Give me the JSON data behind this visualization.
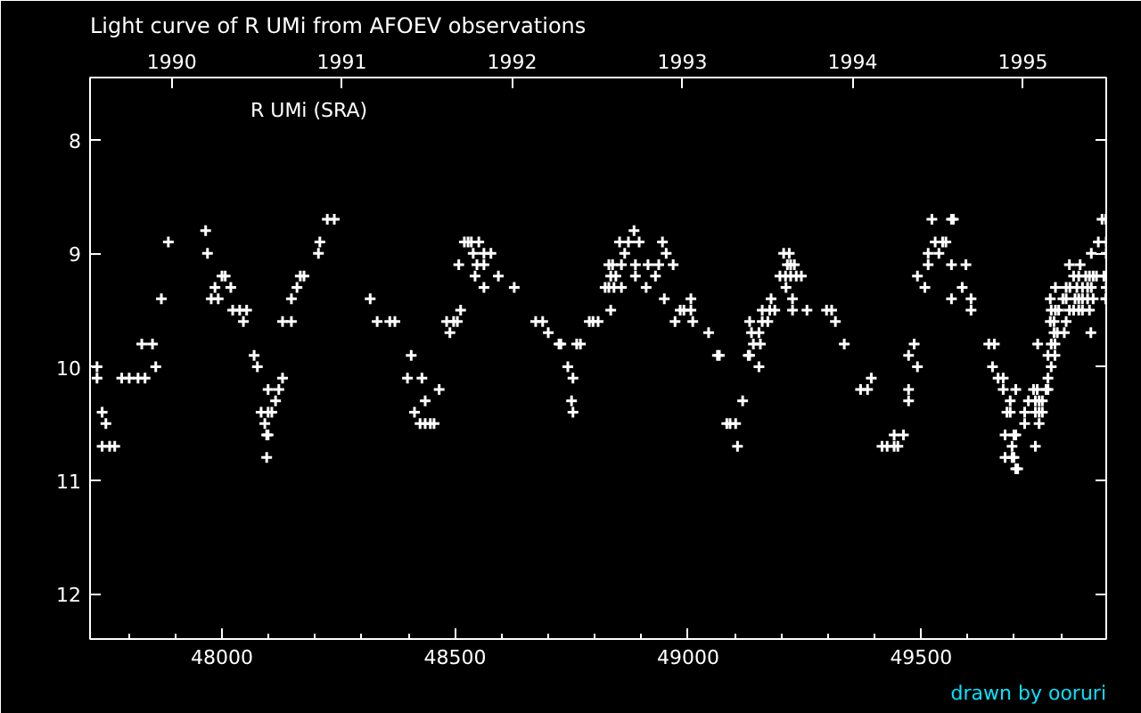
{
  "chart_data": {
    "type": "scatter",
    "title": "Light curve of R UMi from AFOEV observations",
    "annotations": [
      "R UMi (SRA)",
      "drawn by ooruri"
    ],
    "marker": "cross",
    "grid": false,
    "color": "#ffffff",
    "xlim": [
      47717,
      49897
    ],
    "ylim": [
      12.4,
      7.45
    ],
    "xticks": [
      {
        "value": 47800,
        "label": null
      },
      {
        "value": 47900,
        "label": null
      },
      48000,
      {
        "value": 48100,
        "label": null
      },
      {
        "value": 48200,
        "label": null
      },
      {
        "value": 48300,
        "label": null
      },
      {
        "value": 48400,
        "label": null
      },
      48500,
      {
        "value": 48600,
        "label": null
      },
      {
        "value": 48700,
        "label": null
      },
      {
        "value": 48800,
        "label": null
      },
      {
        "value": 48900,
        "label": null
      },
      49000,
      {
        "value": 49100,
        "label": null
      },
      {
        "value": 49200,
        "label": null
      },
      {
        "value": 49300,
        "label": null
      },
      {
        "value": 49400,
        "label": null
      },
      49500,
      {
        "value": 49600,
        "label": null
      },
      {
        "value": 49700,
        "label": null
      },
      {
        "value": 49800,
        "label": null
      }
    ],
    "yticks": [
      8,
      9,
      10,
      11,
      12
    ],
    "x2lim": [
      1989.52,
      1995.49
    ],
    "x2ticks": [
      1990,
      1991,
      1992,
      1993,
      1994,
      1995
    ],
    "x": [
      47732,
      47732,
      47743,
      47751,
      47743,
      47759,
      47770,
      47785,
      47801,
      47820,
      47835,
      47828,
      47851,
      47858,
      47870,
      47885,
      47965,
      47969,
      48000,
      48007,
      47985,
      48019,
      47977,
      47992,
      48023,
      48038,
      48053,
      48046,
      48069,
      48076,
      48130,
      48099,
      48122,
      48115,
      48084,
      48099,
      48107,
      48092,
      48096,
      48099,
      48096,
      48130,
      48149,
      48149,
      48161,
      48168,
      48176,
      48207,
      48210,
      48226,
      48241,
      48318,
      48333,
      48360,
      48371,
      48406,
      48398,
      48429,
      48436,
      48413,
      48425,
      48436,
      48447,
      48455,
      48466,
      48512,
      48482,
      48497,
      48505,
      48489,
      48508,
      48520,
      48528,
      48535,
      48551,
      48539,
      48562,
      48577,
      48547,
      48562,
      48543,
      48593,
      48562,
      48627,
      48673,
      48688,
      48700,
      48723,
      48727,
      48761,
      48769,
      48742,
      48753,
      48750,
      48753,
      48788,
      48796,
      48807,
      48834,
      48822,
      48830,
      48841,
      48857,
      48834,
      48845,
      48887,
      48930,
      48830,
      48838,
      48857,
      48887,
      48914,
      48937,
      48968,
      48864,
      48953,
      48853,
      48872,
      48895,
      48945,
      48884,
      48910,
      48949,
      49006,
      48983,
      48991,
      49006,
      48972,
      49010,
      49044,
      49063,
      49067,
      49106,
      49117,
      49083,
      49090,
      49102,
      49129,
      49132,
      49152,
      49140,
      49155,
      49136,
      49152,
      49132,
      49159,
      49171,
      49159,
      49175,
      49186,
      49178,
      49224,
      49224,
      49255,
      49210,
      49197,
      49209,
      49220,
      49232,
      49243,
      49213,
      49220,
      49228,
      49205,
      49217,
      49297,
      49308,
      49316,
      49335,
      49393,
      49370,
      49385,
      49416,
      49427,
      49442,
      49450,
      49442,
      49462,
      49473,
      49473,
      49492,
      49473,
      49485,
      49492,
      49508,
      49515,
      49538,
      49530,
      49546,
      49553,
      49523,
      49565,
      49569,
      49515,
      49565,
      49565,
      49588,
      49596,
      49607,
      49607,
      49645,
      49657,
      49653,
      49665,
      49676,
      49676,
      49703,
      49691,
      49684,
      49691,
      49722,
      49722,
      49753,
      49680,
      49699,
      49703,
      49695,
      49745,
      49680,
      49695,
      49699,
      49703,
      49707,
      49730,
      49745,
      49753,
      49760,
      49745,
      49753,
      49760,
      49741,
      49749,
      49768,
      49772,
      49772,
      49779,
      49772,
      49787,
      49750,
      49779,
      49787,
      49785,
      49792,
      49807,
      49864,
      49777,
      49785,
      49811,
      49779,
      49788,
      49795,
      49818,
      49827,
      49838,
      49846,
      49861,
      49777,
      49804,
      49811,
      49830,
      49838,
      49846,
      49857,
      49869,
      49896,
      49897,
      49788,
      49811,
      49819,
      49834,
      49846,
      49857,
      49865,
      49897,
      49827,
      49838,
      49853,
      49861,
      49869,
      49876,
      49892,
      49897,
      49818,
      49841,
      49865,
      49897,
      49880,
      49897,
      49888,
      49896
    ],
    "values": [
      10.0,
      10.1,
      10.4,
      10.5,
      10.7,
      10.7,
      10.7,
      10.1,
      10.1,
      10.1,
      10.1,
      9.8,
      9.8,
      10.0,
      9.4,
      8.9,
      8.8,
      9.0,
      9.2,
      9.2,
      9.3,
      9.3,
      9.4,
      9.4,
      9.5,
      9.5,
      9.5,
      9.6,
      9.9,
      10.0,
      10.1,
      10.2,
      10.2,
      10.3,
      10.4,
      10.4,
      10.4,
      10.5,
      10.6,
      10.6,
      10.8,
      9.6,
      9.6,
      9.4,
      9.3,
      9.2,
      9.2,
      9.0,
      8.9,
      8.7,
      8.7,
      9.4,
      9.6,
      9.6,
      9.6,
      9.9,
      10.1,
      10.1,
      10.3,
      10.4,
      10.5,
      10.5,
      10.5,
      10.5,
      10.2,
      9.5,
      9.6,
      9.6,
      9.6,
      9.7,
      9.1,
      8.9,
      8.9,
      8.9,
      8.9,
      9.0,
      9.0,
      9.0,
      9.1,
      9.1,
      9.2,
      9.2,
      9.3,
      9.3,
      9.6,
      9.6,
      9.7,
      9.8,
      9.8,
      9.8,
      9.8,
      10.0,
      10.1,
      10.3,
      10.4,
      9.6,
      9.6,
      9.6,
      9.5,
      9.3,
      9.3,
      9.3,
      9.3,
      9.2,
      9.2,
      9.2,
      9.2,
      9.1,
      9.1,
      9.1,
      9.1,
      9.1,
      9.1,
      9.1,
      9.0,
      9.0,
      8.9,
      8.9,
      8.9,
      8.9,
      8.8,
      9.3,
      9.4,
      9.4,
      9.5,
      9.5,
      9.5,
      9.6,
      9.6,
      9.7,
      9.9,
      9.9,
      10.7,
      10.3,
      10.5,
      10.5,
      10.5,
      9.9,
      9.9,
      10.0,
      9.8,
      9.8,
      9.7,
      9.7,
      9.6,
      9.6,
      9.6,
      9.5,
      9.5,
      9.5,
      9.4,
      9.4,
      9.5,
      9.5,
      9.3,
      9.2,
      9.2,
      9.2,
      9.2,
      9.2,
      9.1,
      9.1,
      9.1,
      9.0,
      9.0,
      9.5,
      9.5,
      9.6,
      9.8,
      10.1,
      10.2,
      10.2,
      10.7,
      10.7,
      10.7,
      10.7,
      10.6,
      10.6,
      10.2,
      10.3,
      10.0,
      9.9,
      9.8,
      9.2,
      9.3,
      9.0,
      9.0,
      8.9,
      8.9,
      8.9,
      8.7,
      8.7,
      8.7,
      9.1,
      9.1,
      9.4,
      9.3,
      9.1,
      9.4,
      9.5,
      9.8,
      9.8,
      10.0,
      10.1,
      10.1,
      10.2,
      10.2,
      10.3,
      10.4,
      10.4,
      10.4,
      10.5,
      10.5,
      10.6,
      10.6,
      10.6,
      10.7,
      10.7,
      10.8,
      10.8,
      10.8,
      10.9,
      10.9,
      10.3,
      10.3,
      10.3,
      10.3,
      10.4,
      10.4,
      10.4,
      10.2,
      10.2,
      10.2,
      10.2,
      10.1,
      10.0,
      9.9,
      9.9,
      9.8,
      9.8,
      9.8,
      9.7,
      9.7,
      9.7,
      9.7,
      9.6,
      9.6,
      9.6,
      9.5,
      9.5,
      9.5,
      9.5,
      9.5,
      9.5,
      9.5,
      9.5,
      9.4,
      9.4,
      9.4,
      9.4,
      9.4,
      9.4,
      9.4,
      9.4,
      9.4,
      9.4,
      9.3,
      9.3,
      9.3,
      9.3,
      9.3,
      9.3,
      9.3,
      9.3,
      9.2,
      9.2,
      9.2,
      9.2,
      9.2,
      9.2,
      9.2,
      9.2,
      9.1,
      9.1,
      9.0,
      9.0,
      8.9,
      8.9,
      8.7,
      8.7
    ]
  }
}
